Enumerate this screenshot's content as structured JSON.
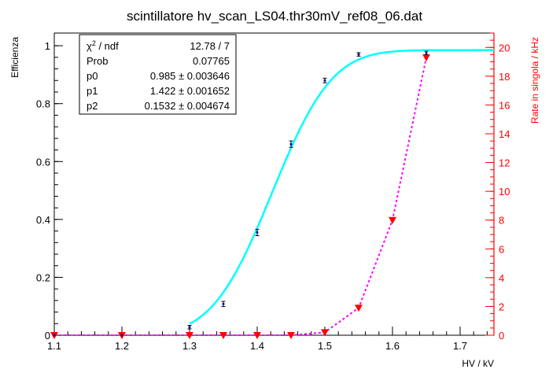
{
  "chart_data": {
    "type": "scatter",
    "title": "scintillatore hv_scan_LS04.thr30mV_ref08_06.dat",
    "xlabel": "HV / kV",
    "ylabel": "Efficienza",
    "y2label": "Rate in singola / kHz",
    "xlim": [
      1.1,
      1.75
    ],
    "ylim": [
      0,
      1.0
    ],
    "y2lim": [
      0,
      21
    ],
    "x_ticks": [
      "1.1",
      "1.2",
      "1.3",
      "1.4",
      "1.5",
      "1.6",
      "1.7"
    ],
    "y_ticks": [
      "0",
      "0.2",
      "0.4",
      "0.6",
      "0.8",
      "1"
    ],
    "y2_ticks": [
      "0",
      "2",
      "4",
      "6",
      "8",
      "10",
      "12",
      "14",
      "16",
      "18",
      "20"
    ],
    "grid": false,
    "series": [
      {
        "role": "efficiency-points",
        "color": "#000000",
        "x": [
          1.1,
          1.2,
          1.3,
          1.35,
          1.4,
          1.45,
          1.5,
          1.55,
          1.65
        ],
        "y": [
          0.0,
          0.0,
          0.028,
          0.108,
          0.355,
          0.66,
          0.88,
          0.97,
          0.975
        ],
        "yerr": [
          0.0,
          0.0,
          0.006,
          0.009,
          0.011,
          0.011,
          0.008,
          0.006,
          0.006
        ]
      },
      {
        "role": "efficiency-fit",
        "color": "#00ffff",
        "function": "p0 / (1 + exp(-(x - p1) / p2 * 10))",
        "p0": 0.985,
        "p1": 1.422,
        "p2": 0.1532,
        "range": [
          1.3,
          1.75
        ]
      },
      {
        "role": "single-rate",
        "axis": "right",
        "color": "#ff0000",
        "line_color": "#ff00ff",
        "x": [
          1.1,
          1.2,
          1.3,
          1.35,
          1.4,
          1.45,
          1.5,
          1.55,
          1.6,
          1.65
        ],
        "y": [
          0.0,
          0.0,
          0.0,
          0.0,
          0.0,
          0.0,
          0.2,
          1.9,
          8.0,
          19.3
        ]
      }
    ],
    "stats_box": {
      "position": "top-left",
      "rows": [
        {
          "label_main": "χ",
          "label_sup": "2",
          "label_rest": " / ndf",
          "value": "12.78 / 7"
        },
        {
          "label_main": "Prob",
          "label_sup": "",
          "label_rest": "",
          "value": "0.07765"
        },
        {
          "label_main": "p0",
          "label_sup": "",
          "label_rest": "",
          "value": "0.985 ± 0.003646"
        },
        {
          "label_main": "p1",
          "label_sup": "",
          "label_rest": "",
          "value": "1.422 ± 0.001652"
        },
        {
          "label_main": "p2",
          "label_sup": "",
          "label_rest": "",
          "value": "0.1532 ± 0.004674"
        }
      ]
    }
  }
}
